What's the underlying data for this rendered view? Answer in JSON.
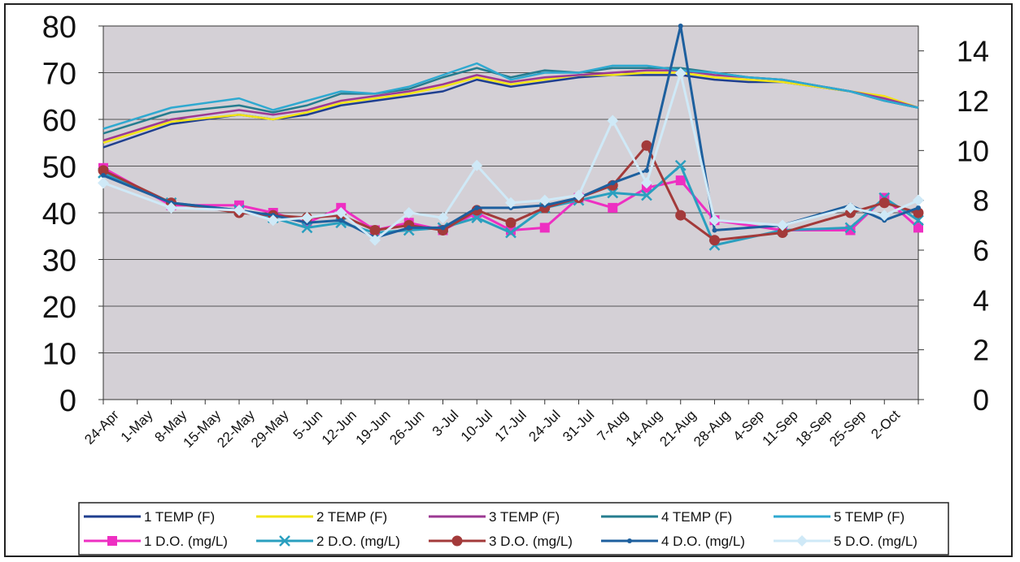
{
  "chart_data": {
    "type": "line",
    "categories": [
      "24-Apr",
      "1-May",
      "8-May",
      "15-May",
      "22-May",
      "29-May",
      "5-Jun",
      "12-Jun",
      "19-Jun",
      "26-Jun",
      "3-Jul",
      "10-Jul",
      "17-Jul",
      "24-Jul",
      "31-Jul",
      "7-Aug",
      "14-Aug",
      "21-Aug",
      "28-Aug",
      "4-Sep",
      "11-Sep",
      "18-Sep",
      "25-Sep",
      "2-Oct"
    ],
    "ylim": [
      0,
      80
    ],
    "y2lim": [
      0,
      15
    ],
    "yticks": [
      "0",
      "10",
      "20",
      "30",
      "40",
      "50",
      "60",
      "70",
      "80"
    ],
    "y2ticks": [
      "0",
      "2",
      "4",
      "6",
      "8",
      "10",
      "12",
      "14"
    ],
    "grid": "horizontal",
    "legend_position": "bottom",
    "series": [
      {
        "name": "1 TEMP (F)",
        "axis": "left",
        "color": "#1f3f8f",
        "marker": "none",
        "values": [
          [
            0,
            54
          ],
          [
            2,
            59
          ],
          [
            4,
            61
          ],
          [
            5,
            60
          ],
          [
            6,
            61
          ],
          [
            7,
            63
          ],
          [
            8,
            64
          ],
          [
            9,
            65
          ],
          [
            10,
            66
          ],
          [
            11,
            68.5
          ],
          [
            12,
            67
          ],
          [
            13,
            68
          ],
          [
            14,
            69
          ],
          [
            15,
            69.5
          ],
          [
            16,
            69.5
          ],
          [
            17,
            69.5
          ],
          [
            18,
            68.5
          ],
          [
            19,
            68
          ],
          [
            20,
            68
          ],
          [
            22,
            66
          ],
          [
            23,
            64
          ],
          [
            24,
            62.5
          ]
        ]
      },
      {
        "name": "2 TEMP (F)",
        "axis": "left",
        "color": "#f2e415",
        "marker": "none",
        "values": [
          [
            0,
            55
          ],
          [
            2,
            59.5
          ],
          [
            4,
            61
          ],
          [
            5,
            60
          ],
          [
            6,
            61.5
          ],
          [
            7,
            63.5
          ],
          [
            8,
            64.5
          ],
          [
            9,
            65.5
          ],
          [
            10,
            67
          ],
          [
            11,
            69
          ],
          [
            12,
            67.5
          ],
          [
            13,
            68.5
          ],
          [
            14,
            69.5
          ],
          [
            15,
            69.5
          ],
          [
            16,
            70
          ],
          [
            17,
            70
          ],
          [
            18,
            69
          ],
          [
            19,
            68.5
          ],
          [
            20,
            68
          ],
          [
            22,
            66
          ],
          [
            23,
            65
          ],
          [
            24,
            62.5
          ]
        ]
      },
      {
        "name": "3 TEMP (F)",
        "axis": "left",
        "color": "#9c3a93",
        "marker": "none",
        "values": [
          [
            0,
            55.5
          ],
          [
            2,
            60
          ],
          [
            4,
            62
          ],
          [
            5,
            61
          ],
          [
            6,
            62
          ],
          [
            7,
            64
          ],
          [
            8,
            65
          ],
          [
            9,
            66
          ],
          [
            10,
            67.5
          ],
          [
            11,
            69.5
          ],
          [
            12,
            68
          ],
          [
            13,
            69
          ],
          [
            14,
            69.5
          ],
          [
            15,
            70
          ],
          [
            16,
            70.5
          ],
          [
            17,
            70.5
          ],
          [
            18,
            69.5
          ],
          [
            19,
            69
          ],
          [
            20,
            68.5
          ],
          [
            22,
            66
          ],
          [
            23,
            64.5
          ],
          [
            24,
            62.5
          ]
        ]
      },
      {
        "name": "4 TEMP (F)",
        "axis": "left",
        "color": "#267d8f",
        "marker": "none",
        "values": [
          [
            0,
            57
          ],
          [
            2,
            61.5
          ],
          [
            4,
            63
          ],
          [
            5,
            61.5
          ],
          [
            6,
            63
          ],
          [
            7,
            65.5
          ],
          [
            8,
            65.5
          ],
          [
            9,
            66.5
          ],
          [
            10,
            69
          ],
          [
            11,
            71
          ],
          [
            12,
            69
          ],
          [
            13,
            70.5
          ],
          [
            14,
            70
          ],
          [
            15,
            71
          ],
          [
            16,
            71
          ],
          [
            17,
            71
          ],
          [
            18,
            70
          ],
          [
            19,
            69
          ],
          [
            20,
            68.5
          ],
          [
            22,
            66
          ],
          [
            23,
            64
          ],
          [
            24,
            62.5
          ]
        ]
      },
      {
        "name": "5 TEMP (F)",
        "axis": "left",
        "color": "#2fa9d0",
        "marker": "none",
        "values": [
          [
            0,
            58
          ],
          [
            2,
            62.5
          ],
          [
            4,
            64.5
          ],
          [
            5,
            62
          ],
          [
            6,
            64
          ],
          [
            7,
            66
          ],
          [
            8,
            65.5
          ],
          [
            9,
            67
          ],
          [
            10,
            69.5
          ],
          [
            11,
            72
          ],
          [
            12,
            68.5
          ],
          [
            13,
            70
          ],
          [
            14,
            70
          ],
          [
            15,
            71.5
          ],
          [
            16,
            71.5
          ],
          [
            17,
            70.5
          ],
          [
            18,
            70
          ],
          [
            19,
            69
          ],
          [
            20,
            68.5
          ],
          [
            22,
            66
          ],
          [
            23,
            64
          ],
          [
            24,
            62.5
          ]
        ]
      },
      {
        "name": "1 D.O. (mg/L)",
        "axis": "right",
        "color": "#ee2fc2",
        "marker": "square",
        "values": [
          [
            0,
            9.3
          ],
          [
            2,
            7.8
          ],
          [
            4,
            7.8
          ],
          [
            5,
            7.5
          ],
          [
            6,
            7.1
          ],
          [
            7,
            7.7
          ],
          [
            8,
            6.8
          ],
          [
            9,
            7.1
          ],
          [
            10,
            6.8
          ],
          [
            11,
            7.5
          ],
          [
            12,
            6.8
          ],
          [
            13,
            6.9
          ],
          [
            14,
            8.1
          ],
          [
            15,
            7.7
          ],
          [
            16,
            8.5
          ],
          [
            17,
            8.8
          ],
          [
            18,
            7.2
          ],
          [
            20,
            6.8
          ],
          [
            22,
            6.8
          ],
          [
            23,
            8.1
          ],
          [
            24,
            6.9
          ]
        ]
      },
      {
        "name": "2 D.O. (mg/L)",
        "axis": "right",
        "color": "#2a9fbf",
        "marker": "x",
        "values": [
          [
            0,
            9.1
          ],
          [
            2,
            7.9
          ],
          [
            4,
            7.6
          ],
          [
            5,
            7.3
          ],
          [
            6,
            6.9
          ],
          [
            7,
            7.1
          ],
          [
            8,
            6.7
          ],
          [
            9,
            6.8
          ],
          [
            10,
            6.9
          ],
          [
            11,
            7.3
          ],
          [
            12,
            6.7
          ],
          [
            13,
            7.7
          ],
          [
            14,
            8.0
          ],
          [
            15,
            8.3
          ],
          [
            16,
            8.2
          ],
          [
            17,
            9.4
          ],
          [
            18,
            6.2
          ],
          [
            20,
            6.8
          ],
          [
            22,
            6.9
          ],
          [
            23,
            8.1
          ],
          [
            24,
            7.2
          ]
        ]
      },
      {
        "name": "3 D.O. (mg/L)",
        "axis": "right",
        "color": "#a33a3a",
        "marker": "circle",
        "values": [
          [
            0,
            9.2
          ],
          [
            2,
            7.9
          ],
          [
            4,
            7.5
          ],
          [
            5,
            7.4
          ],
          [
            6,
            7.3
          ],
          [
            7,
            7.4
          ],
          [
            8,
            6.8
          ],
          [
            9,
            7.0
          ],
          [
            10,
            6.8
          ],
          [
            11,
            7.6
          ],
          [
            12,
            7.1
          ],
          [
            13,
            7.7
          ],
          [
            14,
            8.1
          ],
          [
            15,
            8.6
          ],
          [
            16,
            10.2
          ],
          [
            17,
            7.4
          ],
          [
            18,
            6.4
          ],
          [
            20,
            6.7
          ],
          [
            22,
            7.5
          ],
          [
            23,
            7.9
          ],
          [
            24,
            7.5
          ]
        ]
      },
      {
        "name": "4 D.O. (mg/L)",
        "axis": "right",
        "color": "#1d5f9e",
        "marker": "dot",
        "values": [
          [
            0,
            9.0
          ],
          [
            2,
            7.9
          ],
          [
            4,
            7.6
          ],
          [
            5,
            7.4
          ],
          [
            6,
            7.1
          ],
          [
            7,
            7.2
          ],
          [
            8,
            6.5
          ],
          [
            9,
            6.9
          ],
          [
            10,
            6.9
          ],
          [
            11,
            7.7
          ],
          [
            12,
            7.7
          ],
          [
            13,
            7.8
          ],
          [
            14,
            8.1
          ],
          [
            15,
            8.7
          ],
          [
            16,
            9.2
          ],
          [
            17,
            15.0
          ],
          [
            18,
            6.8
          ],
          [
            20,
            7.0
          ],
          [
            22,
            7.8
          ],
          [
            23,
            7.2
          ],
          [
            24,
            7.7
          ]
        ]
      },
      {
        "name": "5 D.O. (mg/L)",
        "axis": "right",
        "color": "#cfe9f7",
        "marker": "diamond",
        "values": [
          [
            0,
            8.7
          ],
          [
            2,
            7.7
          ],
          [
            4,
            7.6
          ],
          [
            5,
            7.2
          ],
          [
            6,
            7.3
          ],
          [
            7,
            7.5
          ],
          [
            8,
            6.4
          ],
          [
            9,
            7.5
          ],
          [
            10,
            7.3
          ],
          [
            11,
            9.4
          ],
          [
            12,
            7.9
          ],
          [
            13,
            8.0
          ],
          [
            14,
            8.2
          ],
          [
            15,
            11.2
          ],
          [
            16,
            8.7
          ],
          [
            17,
            13.1
          ],
          [
            18,
            7.2
          ],
          [
            20,
            7.0
          ],
          [
            22,
            7.7
          ],
          [
            23,
            7.4
          ],
          [
            24,
            8.0
          ]
        ]
      }
    ]
  }
}
